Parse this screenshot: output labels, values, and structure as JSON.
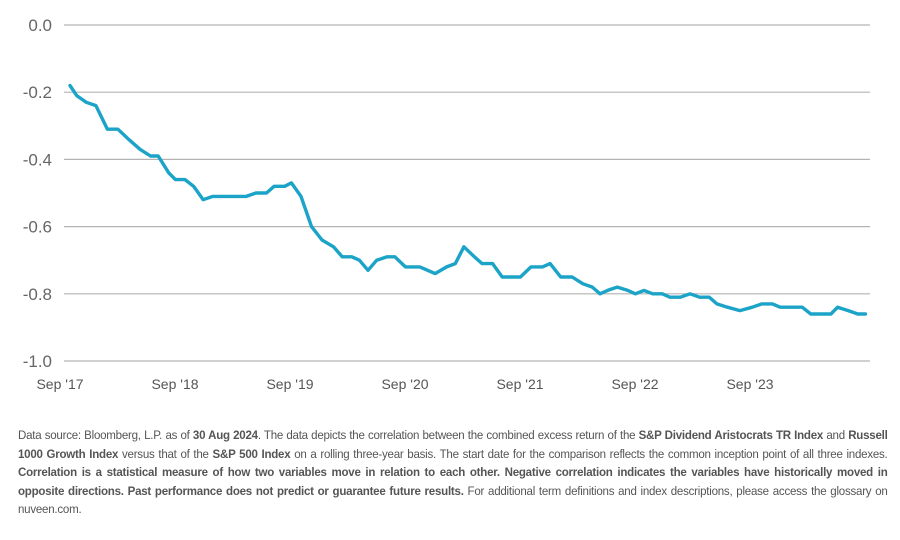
{
  "chart_data": {
    "type": "line",
    "title": "",
    "xlabel": "",
    "ylabel": "",
    "ylim": [
      -1.0,
      0.0
    ],
    "yticks": [
      "0.0",
      "-0.2",
      "-0.4",
      "-0.6",
      "-0.8",
      "-1.0"
    ],
    "ytick_values": [
      0.0,
      -0.2,
      -0.4,
      -0.6,
      -0.8,
      -1.0
    ],
    "xticks": [
      "Sep '17",
      "Sep '18",
      "Sep '19",
      "Sep '20",
      "Sep '21",
      "Sep '22",
      "Sep '23"
    ],
    "xtick_months": [
      0,
      12,
      24,
      36,
      48,
      60,
      72
    ],
    "xlim_months": [
      0,
      83
    ],
    "grid": "horizontal",
    "legend": "none",
    "series": [
      {
        "name": "Rolling 3-year correlation of combined excess return vs S&P 500",
        "color": "#1ba3c8",
        "months": [
          0,
          0.7,
          1.7,
          2.7,
          3.9,
          5.0,
          6.1,
          7.3,
          8.4,
          9.2,
          10.3,
          11.0,
          12.0,
          12.9,
          13.9,
          14.9,
          16.8,
          18.4,
          19.4,
          20.5,
          21.3,
          22.4,
          23.1,
          24.1,
          25.2,
          26.3,
          27.5,
          28.4,
          29.4,
          30.2,
          31.1,
          32.0,
          33.1,
          33.9,
          35.0,
          36.5,
          38.1,
          39.3,
          40.2,
          41.1,
          42.2,
          43.0,
          44.1,
          45.1,
          46.0,
          47.0,
          48.1,
          49.3,
          50.1,
          51.2,
          52.4,
          53.5,
          54.5,
          55.3,
          56.1,
          57.1,
          58.2,
          59.0,
          59.9,
          60.8,
          61.8,
          62.6,
          63.7,
          64.7,
          65.7,
          66.7,
          67.5,
          68.6,
          69.9,
          71.2,
          72.2,
          73.3,
          74.1,
          75.4,
          76.4,
          77.3,
          78.3,
          79.4,
          80.1,
          81.2,
          82.2,
          83.0
        ],
        "values": [
          -0.18,
          -0.21,
          -0.23,
          -0.24,
          -0.31,
          -0.31,
          -0.34,
          -0.37,
          -0.39,
          -0.39,
          -0.44,
          -0.46,
          -0.46,
          -0.48,
          -0.52,
          -0.51,
          -0.51,
          -0.51,
          -0.5,
          -0.5,
          -0.48,
          -0.48,
          -0.47,
          -0.51,
          -0.6,
          -0.64,
          -0.66,
          -0.69,
          -0.69,
          -0.7,
          -0.73,
          -0.7,
          -0.69,
          -0.69,
          -0.72,
          -0.72,
          -0.74,
          -0.72,
          -0.71,
          -0.66,
          -0.69,
          -0.71,
          -0.71,
          -0.75,
          -0.75,
          -0.75,
          -0.72,
          -0.72,
          -0.71,
          -0.75,
          -0.75,
          -0.77,
          -0.78,
          -0.8,
          -0.79,
          -0.78,
          -0.79,
          -0.8,
          -0.79,
          -0.8,
          -0.8,
          -0.81,
          -0.81,
          -0.8,
          -0.81,
          -0.81,
          -0.83,
          -0.84,
          -0.85,
          -0.84,
          -0.83,
          -0.83,
          -0.84,
          -0.84,
          -0.84,
          -0.86,
          -0.86,
          -0.86,
          -0.84,
          -0.85,
          -0.86,
          -0.86
        ]
      }
    ]
  },
  "footnote": {
    "segments": [
      {
        "text": "Data source: Bloomberg, L.P. as of ",
        "bold": false
      },
      {
        "text": "30 Aug 2024",
        "bold": true
      },
      {
        "text": ". The data depicts the correlation between the combined excess return of the ",
        "bold": false
      },
      {
        "text": "S&P Dividend Aristocrats TR Index",
        "bold": true
      },
      {
        "text": " and ",
        "bold": false
      },
      {
        "text": "Russell 1000 Growth Index",
        "bold": true
      },
      {
        "text": " versus that of the ",
        "bold": false
      },
      {
        "text": "S&P 500 Index",
        "bold": true
      },
      {
        "text": " on a rolling three-year basis. The start date for the comparison reflects the common inception point of all three indexes. ",
        "bold": false
      },
      {
        "text": "Correlation is a statistical measure of how two variables move in relation to each other. Negative correlation indicates the variables have historically moved in opposite directions. Past performance does not predict or guarantee future results.",
        "bold": true
      },
      {
        "text": " For additional term definitions and index descriptions, please access the glossary on nuveen.com.",
        "bold": false
      }
    ]
  }
}
